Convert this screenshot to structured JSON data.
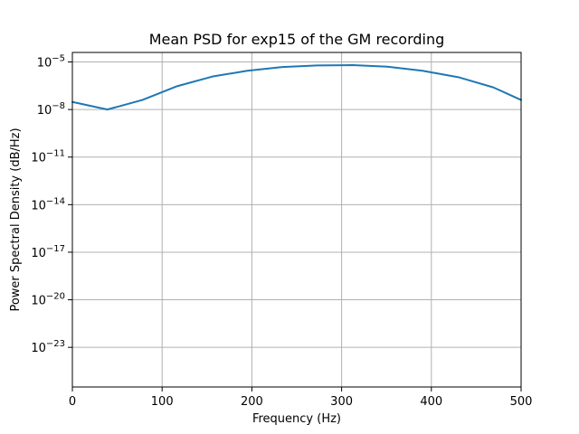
{
  "chart_data": {
    "type": "line",
    "title": "Mean PSD for exp15 of the GM recording",
    "xlabel": "Frequency (Hz)",
    "ylabel": "Power Spectral Density (dB/Hz)",
    "xlim": [
      0,
      500
    ],
    "ylim_log10": [
      -25.5,
      -4.4
    ],
    "y_scale": "log",
    "grid": true,
    "x_ticks": [
      0,
      100,
      200,
      300,
      400,
      500
    ],
    "x_tick_labels": [
      "0",
      "100",
      "200",
      "300",
      "400",
      "500"
    ],
    "y_ticks_log10": [
      -5,
      -8,
      -11,
      -14,
      -17,
      -20,
      -23
    ],
    "y_tick_labels": [
      {
        "base": "10",
        "exp": "−5"
      },
      {
        "base": "10",
        "exp": "−8"
      },
      {
        "base": "10",
        "exp": "−11"
      },
      {
        "base": "10",
        "exp": "−14"
      },
      {
        "base": "10",
        "exp": "−17"
      },
      {
        "base": "10",
        "exp": "−20"
      },
      {
        "base": "10",
        "exp": "−23"
      }
    ],
    "series": [
      {
        "color": "#1f77b4",
        "x": [
          0,
          39,
          78,
          117,
          156,
          195,
          234,
          273,
          312,
          351,
          390,
          430,
          469,
          500
        ],
        "y": [
          3e-08,
          1e-08,
          4e-08,
          3e-07,
          1.2e-06,
          2.8e-06,
          4.8e-06,
          6e-06,
          6.3e-06,
          5e-06,
          2.8e-06,
          1.1e-06,
          2.5e-07,
          4e-08
        ]
      }
    ]
  }
}
